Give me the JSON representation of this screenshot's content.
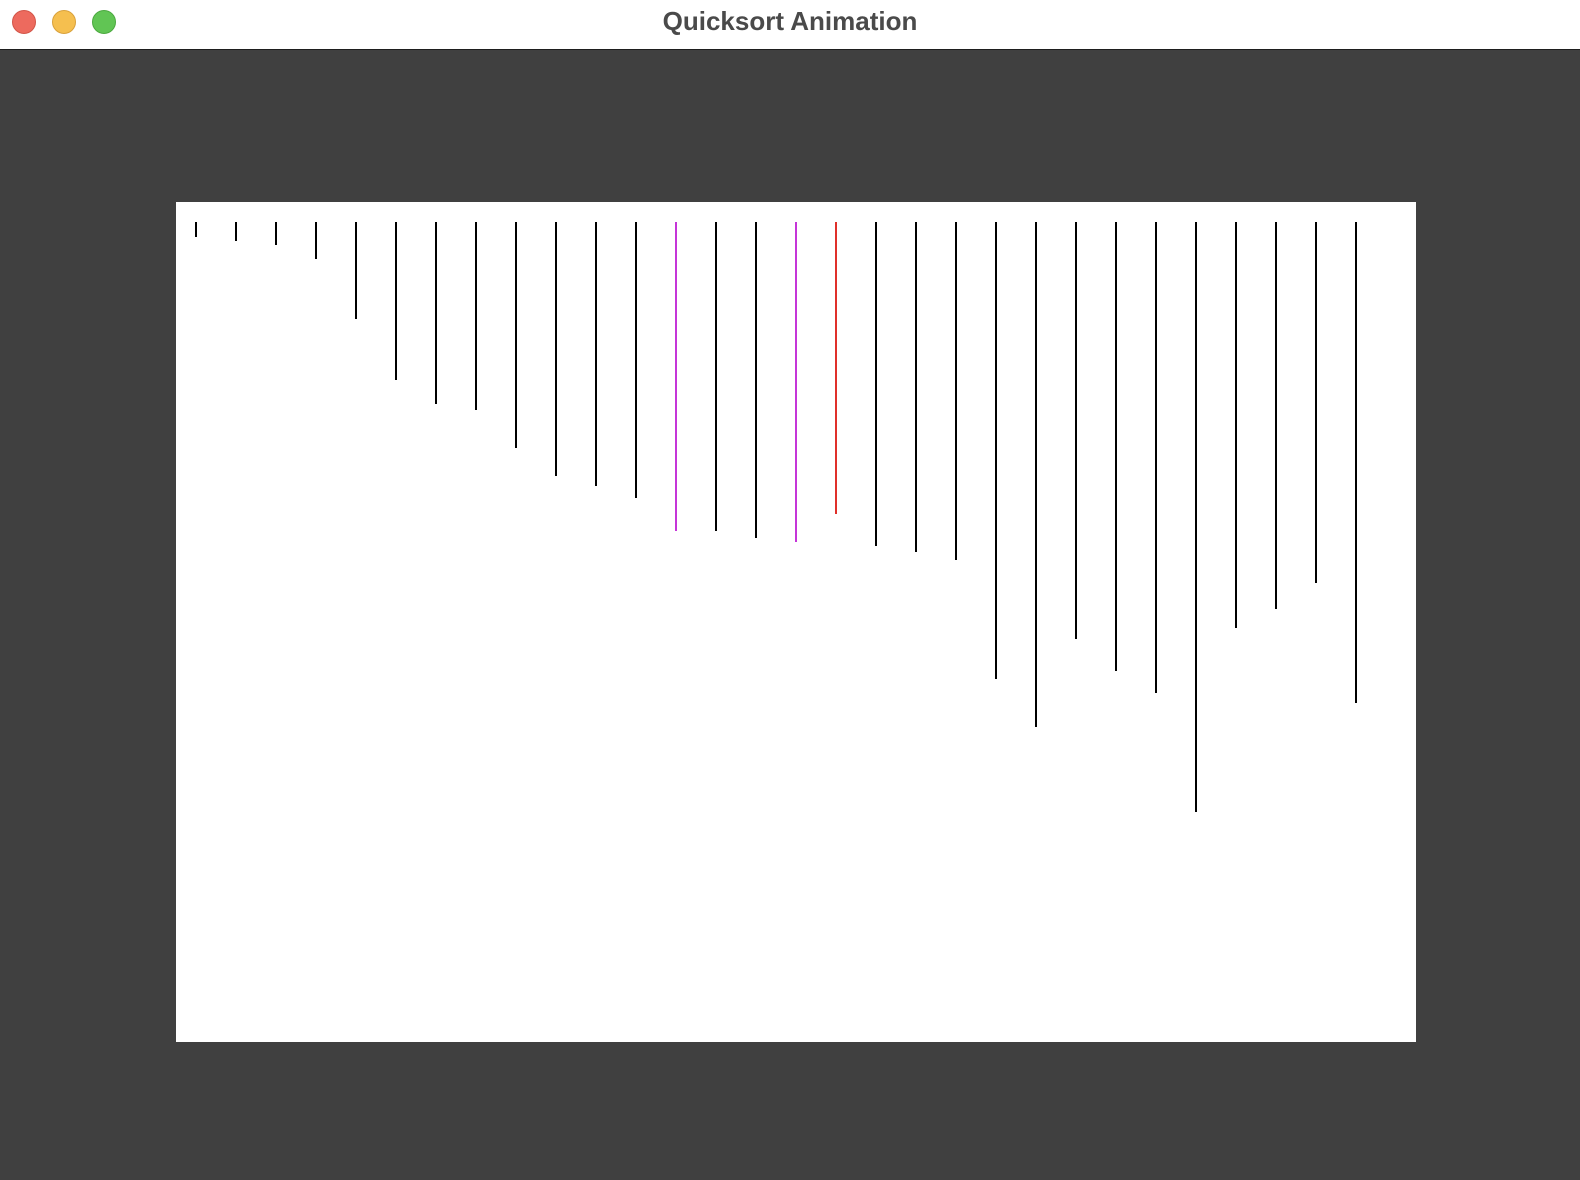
{
  "window": {
    "title": "Quicksort Animation"
  },
  "colors": {
    "default_bar": "#000000",
    "compare_bar": "#c535d8",
    "pivot_bar": "#e0302a"
  },
  "array": {
    "values": [
      15,
      19,
      23,
      37,
      97,
      158,
      182,
      188,
      226,
      254,
      264,
      276,
      309,
      309,
      316,
      320,
      292,
      324,
      330,
      338,
      457,
      505,
      417,
      449,
      471,
      590,
      406,
      387,
      361,
      481
    ],
    "states": [
      "default",
      "default",
      "default",
      "default",
      "default",
      "default",
      "default",
      "default",
      "default",
      "default",
      "default",
      "default",
      "compare",
      "default",
      "default",
      "compare",
      "pivot",
      "default",
      "default",
      "default",
      "default",
      "default",
      "default",
      "default",
      "default",
      "default",
      "default",
      "default",
      "default",
      "default"
    ]
  }
}
